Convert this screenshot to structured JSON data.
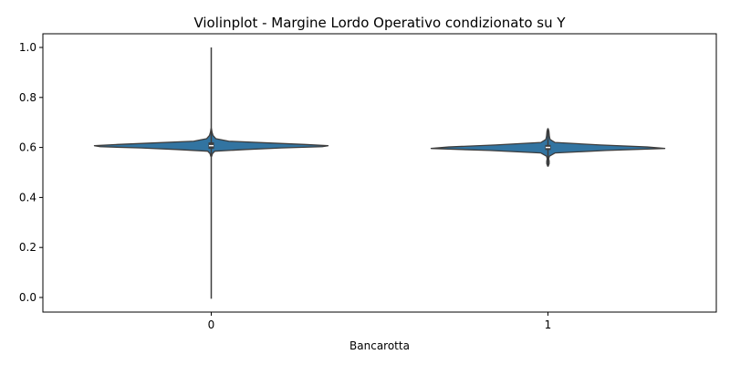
{
  "chart_data": {
    "type": "violin",
    "title": "Violinplot - Margine Lordo Operativo condizionato su Y",
    "xlabel": "Bancarotta",
    "ylabel": "",
    "categories": [
      "0",
      "1"
    ],
    "ylim": [
      -0.05,
      1.05
    ],
    "yticks": [
      0.0,
      0.2,
      0.4,
      0.6,
      0.8,
      1.0
    ],
    "ytick_labels": [
      "0.0",
      "0.2",
      "0.4",
      "0.6",
      "0.8",
      "1.0"
    ],
    "grid": false,
    "color": "#3274a1",
    "edge_color": "#3d3d3d",
    "violins": [
      {
        "category": "0",
        "min": -0.005,
        "max": 1.0,
        "q1": 0.595,
        "median": 0.607,
        "q3": 0.62,
        "whisker_low": 0.565,
        "whisker_high": 0.67,
        "profile": [
          [
            0.565,
            0.004
          ],
          [
            0.575,
            0.01
          ],
          [
            0.585,
            0.03
          ],
          [
            0.592,
            0.3
          ],
          [
            0.598,
            0.6
          ],
          [
            0.603,
            0.95
          ],
          [
            0.607,
            1.0
          ],
          [
            0.612,
            0.8
          ],
          [
            0.618,
            0.5
          ],
          [
            0.625,
            0.15
          ],
          [
            0.635,
            0.04
          ],
          [
            0.648,
            0.015
          ],
          [
            0.662,
            0.006
          ],
          [
            0.675,
            0.002
          ]
        ]
      },
      {
        "category": "1",
        "min": 0.53,
        "max": 0.67,
        "q1": 0.59,
        "median": 0.6,
        "q3": 0.61,
        "whisker_low": 0.54,
        "whisker_high": 0.665,
        "profile": [
          [
            0.525,
            0.002
          ],
          [
            0.535,
            0.01
          ],
          [
            0.545,
            0.01
          ],
          [
            0.555,
            0.006
          ],
          [
            0.565,
            0.012
          ],
          [
            0.578,
            0.06
          ],
          [
            0.588,
            0.5
          ],
          [
            0.596,
            1.0
          ],
          [
            0.602,
            0.85
          ],
          [
            0.61,
            0.45
          ],
          [
            0.62,
            0.06
          ],
          [
            0.632,
            0.018
          ],
          [
            0.645,
            0.012
          ],
          [
            0.655,
            0.01
          ],
          [
            0.665,
            0.008
          ],
          [
            0.675,
            0.002
          ]
        ]
      }
    ]
  }
}
